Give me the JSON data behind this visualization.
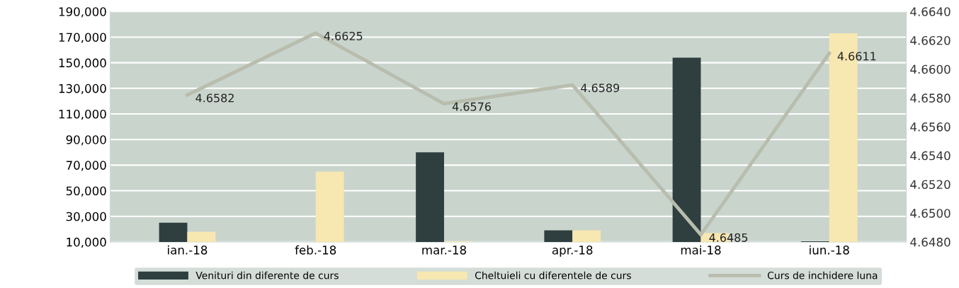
{
  "chart_data": {
    "type": "bar",
    "categories": [
      "ian.-18",
      "feb.-18",
      "mar.-18",
      "apr.-18",
      "mai-18",
      "iun.-18"
    ],
    "series": [
      {
        "name": "Venituri din diferente de curs",
        "color": "#2f3f40",
        "values": [
          25000,
          null,
          80000,
          19000,
          154000,
          10500
        ]
      },
      {
        "name": "Cheltuieli cu diferentele de curs",
        "color": "#f7e7b0",
        "values": [
          18000,
          65000,
          10500,
          19000,
          17000,
          173000
        ]
      },
      {
        "name": "Curs de inchidere luna",
        "type": "line",
        "axis": "y2",
        "color": "#b8bdad",
        "values": [
          4.6582,
          4.6625,
          4.6576,
          4.6589,
          4.6485,
          4.6611
        ],
        "value_labels": [
          "4.6582",
          "4.6625",
          "4.6576",
          "4.6589",
          "4.6485",
          "4.6611"
        ]
      }
    ],
    "ylim": [
      10000,
      190000
    ],
    "yticks": [
      {
        "value": 10000,
        "label": "10,000"
      },
      {
        "value": 30000,
        "label": "30,000"
      },
      {
        "value": 50000,
        "label": "50,000"
      },
      {
        "value": 70000,
        "label": "70,000"
      },
      {
        "value": 90000,
        "label": "90,000"
      },
      {
        "value": 110000,
        "label": "110,000"
      },
      {
        "value": 130000,
        "label": "130,000"
      },
      {
        "value": 150000,
        "label": "150,000"
      },
      {
        "value": 170000,
        "label": "170,000"
      },
      {
        "value": 190000,
        "label": "190,000"
      }
    ],
    "y2lim": [
      4.648,
      4.664
    ],
    "y2ticks": [
      {
        "value": 4.648,
        "label": "4.6480"
      },
      {
        "value": 4.65,
        "label": "4.6500"
      },
      {
        "value": 4.652,
        "label": "4.6520"
      },
      {
        "value": 4.654,
        "label": "4.6540"
      },
      {
        "value": 4.656,
        "label": "4.6560"
      },
      {
        "value": 4.658,
        "label": "4.6580"
      },
      {
        "value": 4.66,
        "label": "4.6600"
      },
      {
        "value": 4.662,
        "label": "4.6620"
      },
      {
        "value": 4.664,
        "label": "4.6640"
      }
    ],
    "grid": "y",
    "legend": "bottom"
  }
}
